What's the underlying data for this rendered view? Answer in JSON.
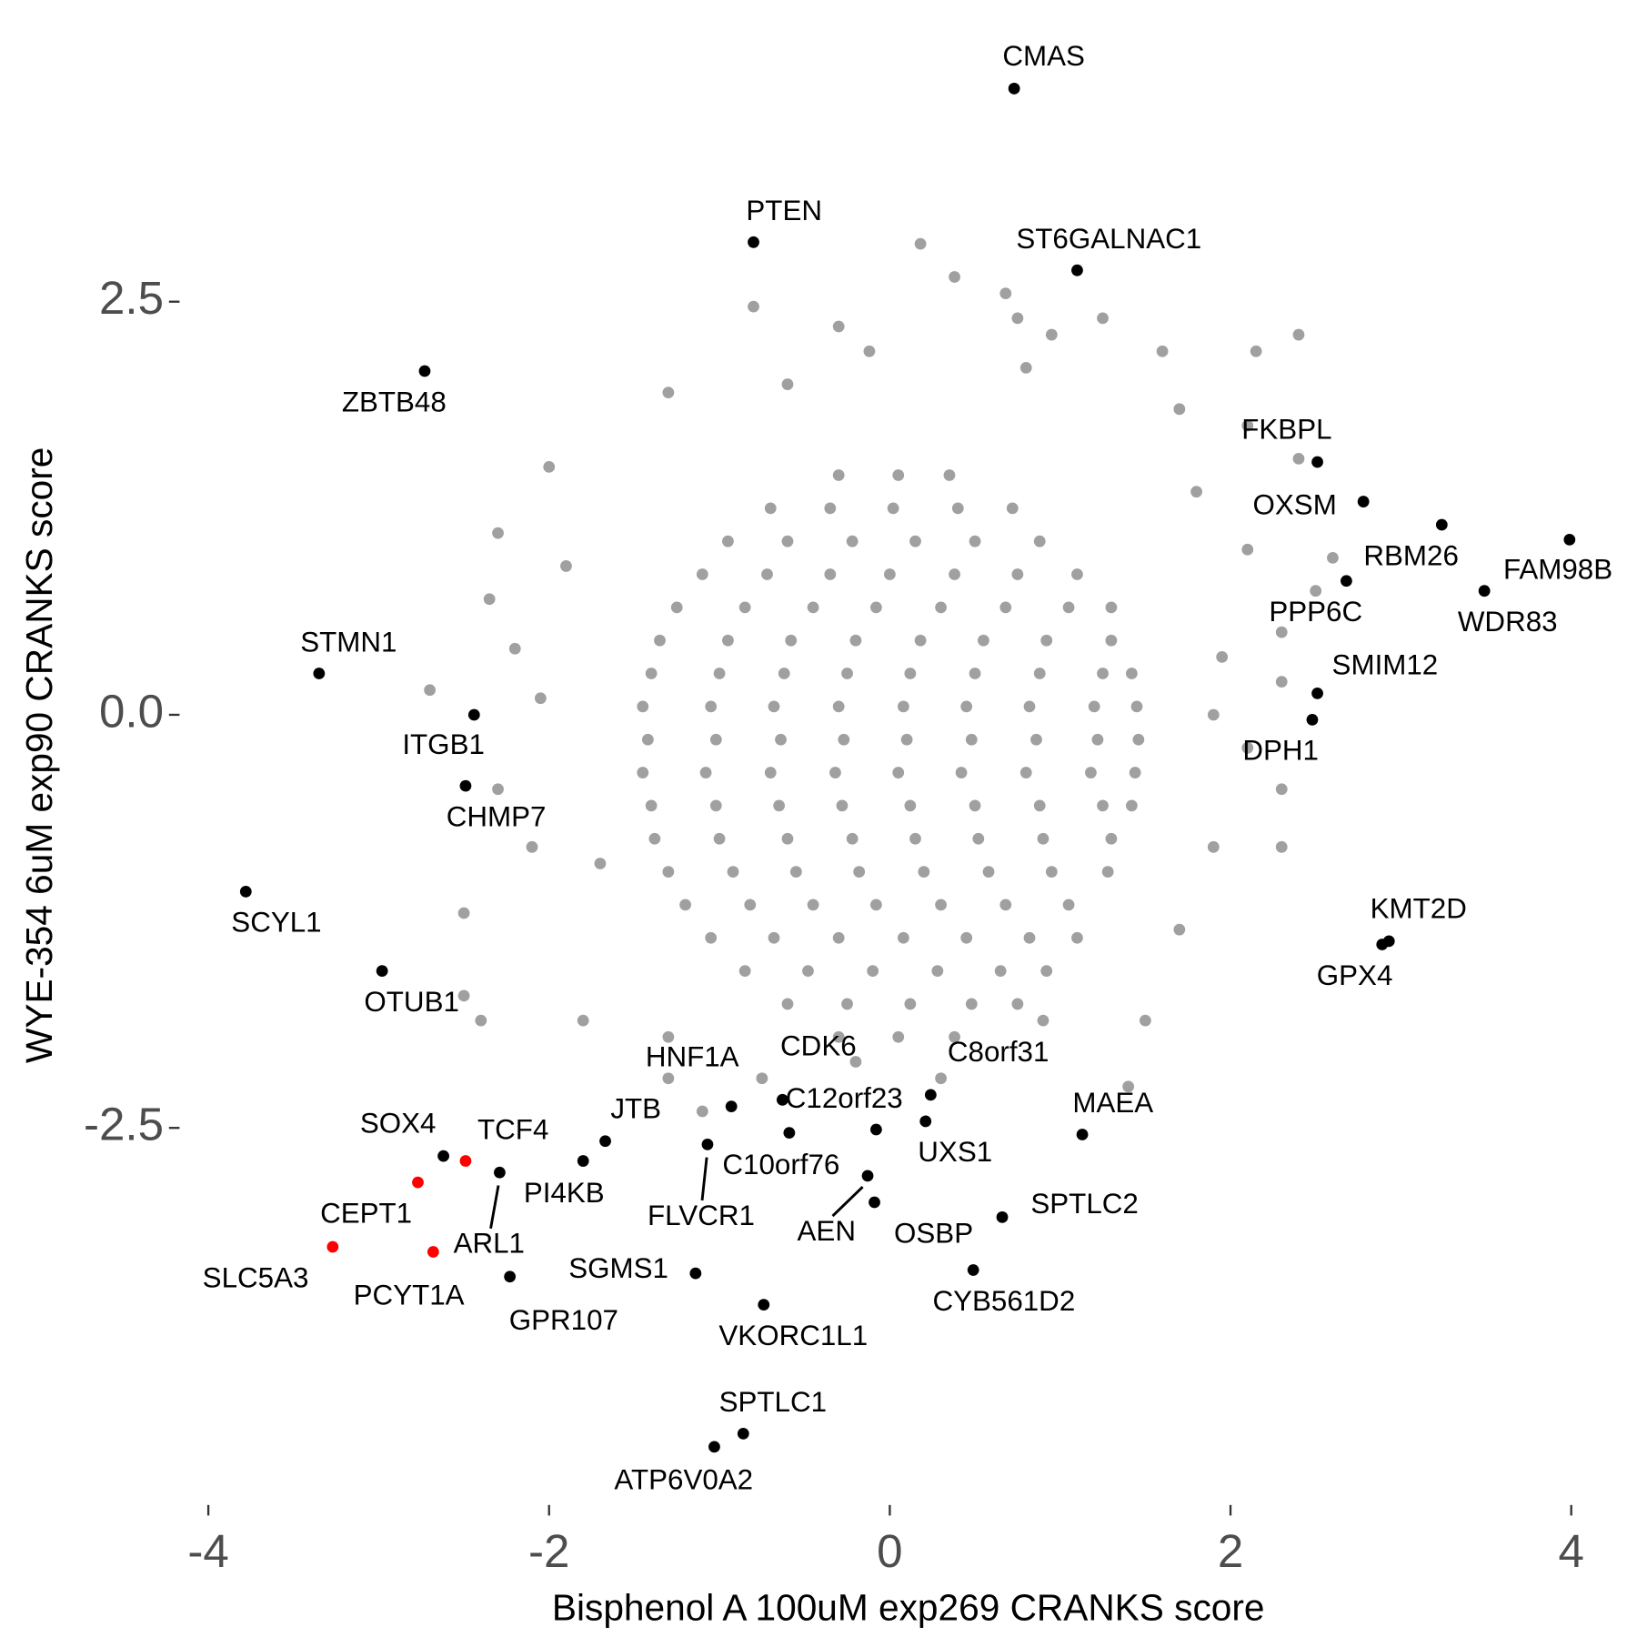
{
  "chart_data": {
    "type": "scatter",
    "x_label": "Bisphenol A 100uM exp269 CRANKS score",
    "y_label": "WYE-354 6uM exp90 CRANKS score",
    "xlim": [
      -4.2,
      4.2
    ],
    "ylim": [
      -4.75,
      4.07
    ],
    "xticks": [
      -4,
      -2,
      0,
      2,
      4
    ],
    "yticks": [
      -2.5,
      {
        "value": 0,
        "label": "0.0"
      },
      2.5
    ],
    "series": [
      {
        "color": "#a0a0a0",
        "x": [
          -0.3,
          0.05,
          0.35,
          -0.7,
          -0.35,
          0.02,
          0.4,
          0.72,
          -0.95,
          -0.6,
          -0.22,
          0.15,
          0.5,
          0.88,
          -1.1,
          -0.72,
          -0.35,
          0.0,
          0.38,
          0.75,
          1.1,
          -1.25,
          -0.85,
          -0.45,
          -0.08,
          0.3,
          0.68,
          1.05,
          1.3,
          -1.35,
          -0.95,
          -0.58,
          -0.2,
          0.18,
          0.55,
          0.92,
          1.3,
          -1.4,
          -1.0,
          -0.62,
          -0.25,
          0.12,
          0.5,
          0.88,
          1.25,
          1.42,
          -1.45,
          -1.05,
          -0.68,
          -0.3,
          0.08,
          0.45,
          0.82,
          1.2,
          1.45,
          -1.42,
          -1.02,
          -0.64,
          -0.27,
          0.1,
          0.48,
          0.86,
          1.22,
          1.46,
          -1.45,
          -1.08,
          -0.7,
          -0.32,
          0.05,
          0.42,
          0.8,
          1.18,
          1.44,
          -1.4,
          -1.02,
          -0.65,
          -0.28,
          0.12,
          0.5,
          0.88,
          1.25,
          1.42,
          -1.38,
          -1.0,
          -0.6,
          -0.22,
          0.15,
          0.52,
          0.9,
          1.3,
          -1.3,
          -0.92,
          -0.55,
          -0.18,
          0.2,
          0.58,
          0.95,
          1.28,
          -1.2,
          -0.82,
          -0.45,
          -0.08,
          0.3,
          0.68,
          1.05,
          -1.05,
          -0.68,
          -0.3,
          0.08,
          0.45,
          0.82,
          1.1,
          -0.85,
          -0.48,
          -0.1,
          0.28,
          0.65,
          0.92,
          -0.6,
          -0.25,
          0.12,
          0.48,
          0.75,
          -0.3,
          0.05,
          0.38,
          0.18,
          0.38,
          0.68,
          0.75,
          1.25,
          0.95,
          -0.8,
          -0.3,
          -0.12,
          1.6,
          2.15,
          2.4,
          0.8,
          -0.6,
          1.7,
          2.1,
          -1.3,
          -2.0,
          2.4,
          1.8,
          -2.3,
          -1.9,
          2.6,
          2.1,
          -2.35,
          2.5,
          -2.2,
          2.3,
          1.95,
          -2.7,
          -2.05,
          2.3,
          1.9,
          2.1,
          -2.3,
          -2.1,
          -1.7,
          2.3,
          1.9,
          2.3,
          -2.5,
          1.7,
          -2.5,
          -2.4,
          -1.8,
          -1.3,
          1.5,
          -1.3,
          -0.75,
          0.3,
          1.4,
          -1.1,
          0.9,
          -0.2
        ],
        "values": [
          1.45,
          1.45,
          1.45,
          1.25,
          1.25,
          1.25,
          1.25,
          1.25,
          1.05,
          1.05,
          1.05,
          1.05,
          1.05,
          1.05,
          0.85,
          0.85,
          0.85,
          0.85,
          0.85,
          0.85,
          0.85,
          0.65,
          0.65,
          0.65,
          0.65,
          0.65,
          0.65,
          0.65,
          0.65,
          0.45,
          0.45,
          0.45,
          0.45,
          0.45,
          0.45,
          0.45,
          0.45,
          0.25,
          0.25,
          0.25,
          0.25,
          0.25,
          0.25,
          0.25,
          0.25,
          0.25,
          0.05,
          0.05,
          0.05,
          0.05,
          0.05,
          0.05,
          0.05,
          0.05,
          0.05,
          -0.15,
          -0.15,
          -0.15,
          -0.15,
          -0.15,
          -0.15,
          -0.15,
          -0.15,
          -0.15,
          -0.35,
          -0.35,
          -0.35,
          -0.35,
          -0.35,
          -0.35,
          -0.35,
          -0.35,
          -0.35,
          -0.55,
          -0.55,
          -0.55,
          -0.55,
          -0.55,
          -0.55,
          -0.55,
          -0.55,
          -0.55,
          -0.75,
          -0.75,
          -0.75,
          -0.75,
          -0.75,
          -0.75,
          -0.75,
          -0.75,
          -0.95,
          -0.95,
          -0.95,
          -0.95,
          -0.95,
          -0.95,
          -0.95,
          -0.95,
          -1.15,
          -1.15,
          -1.15,
          -1.15,
          -1.15,
          -1.15,
          -1.15,
          -1.35,
          -1.35,
          -1.35,
          -1.35,
          -1.35,
          -1.35,
          -1.35,
          -1.55,
          -1.55,
          -1.55,
          -1.55,
          -1.55,
          -1.55,
          -1.75,
          -1.75,
          -1.75,
          -1.75,
          -1.75,
          -1.95,
          -1.95,
          -1.95,
          2.85,
          2.65,
          2.55,
          2.4,
          2.4,
          2.3,
          2.47,
          2.35,
          2.2,
          2.2,
          2.2,
          2.3,
          2.1,
          2.0,
          1.85,
          1.75,
          1.95,
          1.5,
          1.55,
          1.35,
          1.1,
          0.9,
          0.95,
          1.0,
          0.7,
          0.75,
          0.4,
          0.5,
          0.35,
          0.15,
          0.1,
          0.2,
          0.0,
          -0.2,
          -0.45,
          -0.8,
          -0.9,
          -0.45,
          -0.8,
          -0.8,
          -1.2,
          -1.3,
          -1.7,
          -1.85,
          -1.85,
          -1.95,
          -1.85,
          -2.2,
          -2.2,
          -2.2,
          -2.25,
          -2.4,
          -1.85,
          -2.1
        ]
      },
      {
        "color": "#000000",
        "labels": [
          "CMAS",
          "PTEN",
          "ST6GALNAC1",
          "ZBTB48",
          "FKBPL",
          "OXSM",
          "RBM26",
          "FAM98B",
          "WDR83",
          "PPP6C",
          "SMIM12",
          "DPH1",
          "STMN1",
          "ITGB1",
          "CHMP7",
          "SCYL1",
          "OTUB1",
          "KMT2D",
          "GPX4",
          "HNF1A",
          "CDK6",
          "C8orf31",
          "UXS1",
          "C12orf23",
          "C10orf76",
          "MAEA",
          "JTB",
          "SOX4",
          "PI4KB",
          "ARL1",
          "FLVCR1",
          "AEN",
          "OSBP",
          "SPTLC2",
          "GPR107",
          "SGMS1",
          "CYB561D2",
          "VKORC1L1",
          "SPTLC1",
          "ATP6V0A2"
        ],
        "x": [
          0.73,
          -0.8,
          1.1,
          -2.73,
          2.51,
          2.78,
          3.24,
          3.99,
          3.49,
          2.68,
          2.51,
          2.48,
          -3.35,
          -2.44,
          -2.49,
          -3.78,
          -2.98,
          2.93,
          2.89,
          -0.93,
          -0.63,
          0.24,
          0.21,
          -0.59,
          -0.08,
          1.13,
          -1.67,
          -2.62,
          -1.8,
          -2.29,
          -1.07,
          -0.13,
          -0.09,
          0.66,
          -2.23,
          -1.14,
          0.49,
          -0.74,
          -0.86,
          -1.03
        ],
        "values": [
          3.79,
          2.86,
          2.69,
          2.08,
          1.53,
          1.29,
          1.15,
          1.06,
          0.75,
          0.81,
          0.13,
          -0.03,
          0.25,
          0.0,
          -0.43,
          -1.07,
          -1.55,
          -1.37,
          -1.39,
          -2.37,
          -2.33,
          -2.3,
          -2.46,
          -2.53,
          -2.51,
          -2.54,
          -2.58,
          -2.67,
          -2.7,
          -2.77,
          -2.6,
          -2.79,
          -2.95,
          -3.04,
          -3.4,
          -3.38,
          -3.36,
          -3.57,
          -4.35,
          -4.43
        ]
      },
      {
        "color": "#ff0000",
        "labels": [
          "TCF4",
          "CEPT1",
          "SLC5A3",
          "PCYT1A"
        ],
        "x": [
          -2.49,
          -2.77,
          -3.27,
          -2.68
        ],
        "values": [
          -2.7,
          -2.83,
          -3.22,
          -3.25
        ]
      }
    ]
  }
}
